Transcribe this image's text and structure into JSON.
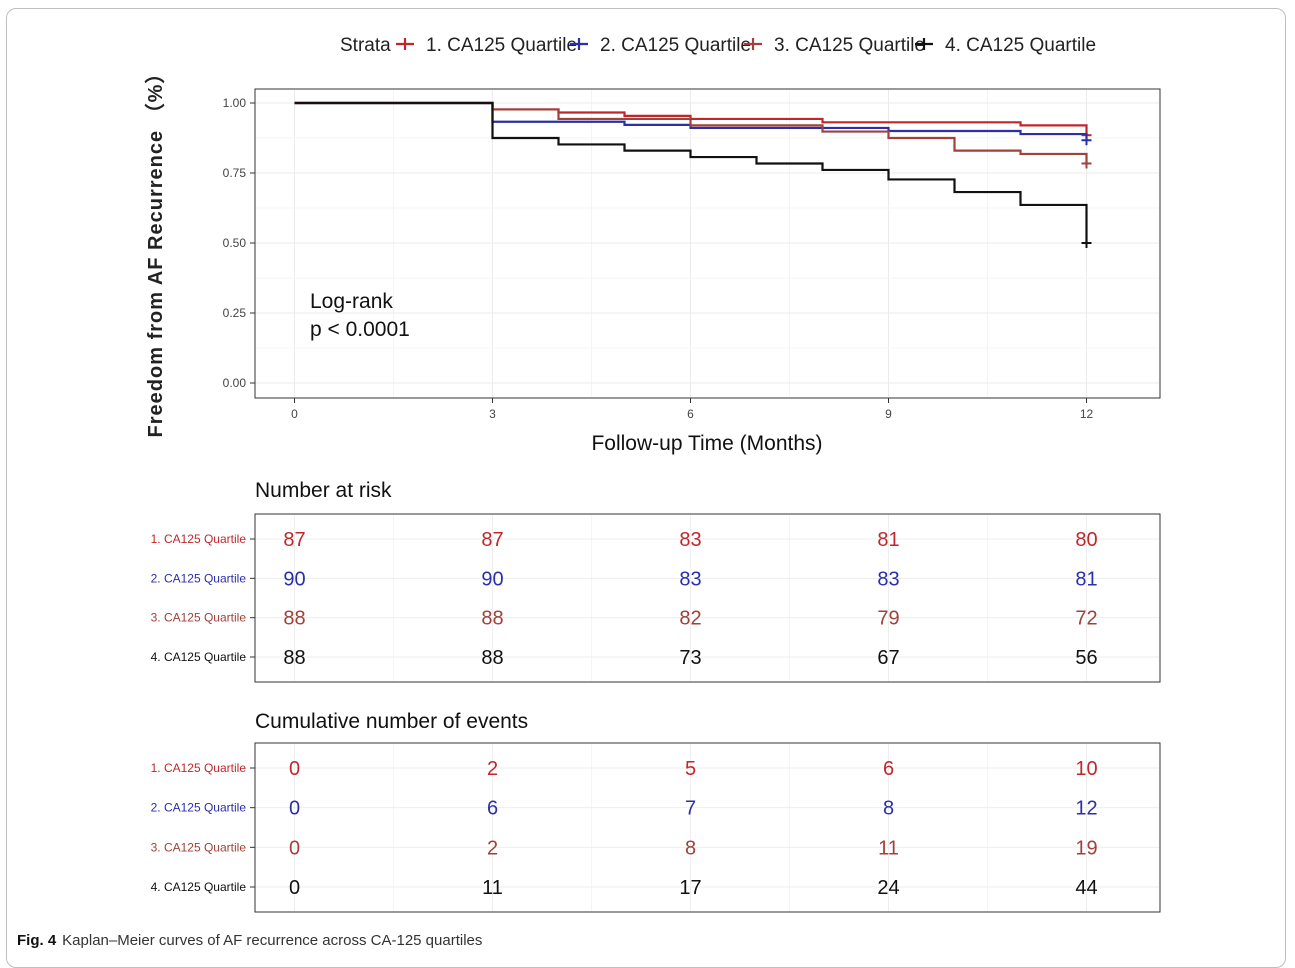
{
  "chart_data": {
    "type": "line",
    "ylabel": "Freedom from AF Recurrence （%）",
    "xlabel": "Follow-up Time (Months)",
    "legend_title": "Strata",
    "legend_position": "top",
    "xlim": [
      0,
      12
    ],
    "ylim": [
      0,
      1
    ],
    "x_ticks": [
      0,
      3,
      6,
      9,
      12
    ],
    "y_ticks": [
      "0.00",
      "0.25",
      "0.50",
      "0.75",
      "1.00"
    ],
    "grid": true,
    "annotation": [
      "Log-rank",
      "p < 0.0001"
    ],
    "series": [
      {
        "name": "1. CA125 Quartile",
        "color": "#c0272d",
        "steps": [
          [
            0,
            1.0
          ],
          [
            3,
            0.977
          ],
          [
            4,
            0.966
          ],
          [
            5,
            0.954
          ],
          [
            6,
            0.943
          ],
          [
            8,
            0.931
          ],
          [
            11,
            0.92
          ],
          [
            12,
            0.885
          ]
        ]
      },
      {
        "name": "2. CA125 Quartile",
        "color": "#2b2fa8",
        "steps": [
          [
            0,
            1.0
          ],
          [
            3,
            0.933
          ],
          [
            5,
            0.922
          ],
          [
            6,
            0.911
          ],
          [
            9,
            0.9
          ],
          [
            11,
            0.889
          ],
          [
            12,
            0.867
          ]
        ]
      },
      {
        "name": "3. CA125 Quartile",
        "color": "#a0413a",
        "steps": [
          [
            0,
            1.0
          ],
          [
            3,
            0.977
          ],
          [
            4,
            0.943
          ],
          [
            6,
            0.92
          ],
          [
            8,
            0.898
          ],
          [
            9,
            0.875
          ],
          [
            10,
            0.83
          ],
          [
            11,
            0.818
          ],
          [
            12,
            0.784
          ]
        ]
      },
      {
        "name": "4. CA125 Quartile",
        "color": "#111111",
        "steps": [
          [
            0,
            1.0
          ],
          [
            3,
            0.875
          ],
          [
            4,
            0.852
          ],
          [
            5,
            0.83
          ],
          [
            6,
            0.807
          ],
          [
            7,
            0.784
          ],
          [
            8,
            0.761
          ],
          [
            9,
            0.727
          ],
          [
            10,
            0.682
          ],
          [
            11,
            0.636
          ],
          [
            12,
            0.5
          ]
        ]
      }
    ]
  },
  "risk_table": {
    "title": "Number at risk",
    "rows": [
      {
        "label": "1. CA125 Quartile",
        "color": "#c0272d",
        "values": [
          "87",
          "87",
          "83",
          "81",
          "80"
        ]
      },
      {
        "label": "2. CA125 Quartile",
        "color": "#2b2fa8",
        "values": [
          "90",
          "90",
          "83",
          "83",
          "81"
        ]
      },
      {
        "label": "3. CA125 Quartile",
        "color": "#a0413a",
        "values": [
          "88",
          "88",
          "82",
          "79",
          "72"
        ]
      },
      {
        "label": "4. CA125 Quartile",
        "color": "#111111",
        "values": [
          "88",
          "88",
          "73",
          "67",
          "56"
        ]
      }
    ]
  },
  "events_table": {
    "title": "Cumulative number of events",
    "rows": [
      {
        "label": "1. CA125 Quartile",
        "color": "#c0272d",
        "values": [
          "0",
          "2",
          "5",
          "6",
          "10"
        ]
      },
      {
        "label": "2. CA125 Quartile",
        "color": "#2b2fa8",
        "values": [
          "0",
          "6",
          "7",
          "8",
          "12"
        ]
      },
      {
        "label": "3. CA125 Quartile",
        "color": "#a0413a",
        "values": [
          "0",
          "2",
          "8",
          "11",
          "19"
        ]
      },
      {
        "label": "4. CA125 Quartile",
        "color": "#111111",
        "values": [
          "0",
          "11",
          "17",
          "24",
          "44"
        ]
      }
    ]
  },
  "caption": {
    "label": "Fig. 4",
    "text": "Kaplan–Meier curves of AF recurrence across CA-125 quartiles"
  }
}
